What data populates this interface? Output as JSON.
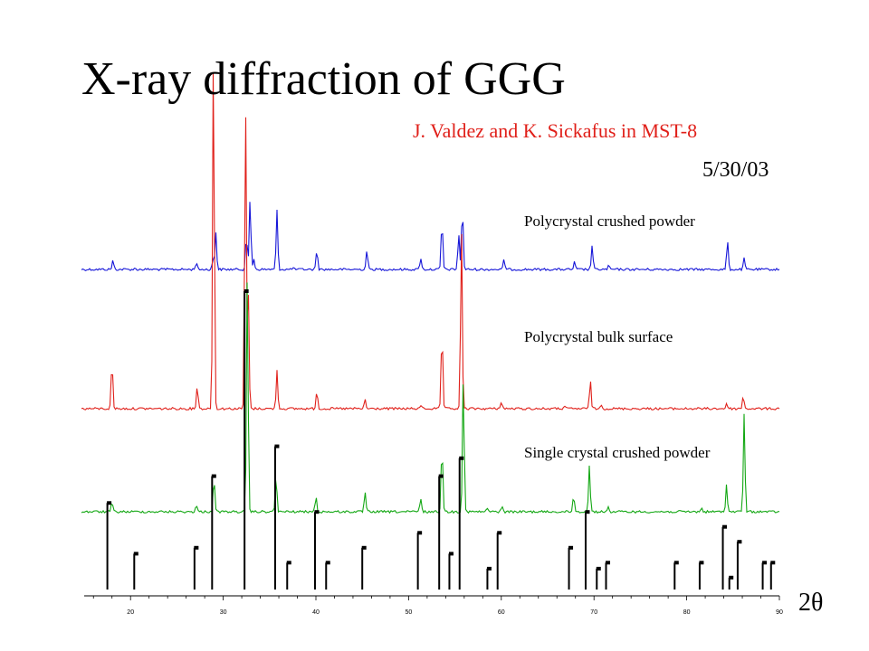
{
  "slide": {
    "title": "X-ray diffraction of GGG",
    "credit": "J. Valdez and K. Sickafus in MST-8",
    "date": "5/30/03",
    "x_unit": "2θ"
  },
  "chart_data": {
    "type": "line",
    "x_axis": {
      "xlim": [
        15,
        90
      ],
      "ticks": [
        20,
        30,
        40,
        50,
        60,
        70,
        80,
        90
      ],
      "minor_step": 2
    },
    "series": [
      {
        "name": "Polycrystal crushed powder",
        "color": "#1515d8",
        "peaks": [
          [
            18.1,
            10
          ],
          [
            20.5,
            1
          ],
          [
            27.1,
            8
          ],
          [
            28.9,
            11
          ],
          [
            29.2,
            42
          ],
          [
            32.5,
            38
          ],
          [
            32.9,
            78
          ],
          [
            33.3,
            12
          ],
          [
            35.8,
            65
          ],
          [
            37.5,
            2
          ],
          [
            40.1,
            22
          ],
          [
            45.5,
            22
          ],
          [
            51.3,
            13
          ],
          [
            53.6,
            54
          ],
          [
            55.4,
            40
          ],
          [
            55.8,
            70
          ],
          [
            60.3,
            11
          ],
          [
            67.9,
            8
          ],
          [
            69.8,
            27
          ],
          [
            71.6,
            4
          ],
          [
            84.4,
            32
          ],
          [
            86.2,
            12
          ]
        ]
      },
      {
        "name": "Polycrystal bulk surface",
        "color": "#e0201a",
        "peaks": [
          [
            18.0,
            52
          ],
          [
            27.2,
            26
          ],
          [
            28.95,
            400
          ],
          [
            32.4,
            340
          ],
          [
            32.7,
            130
          ],
          [
            35.8,
            42
          ],
          [
            40.1,
            20
          ],
          [
            45.3,
            10
          ],
          [
            51.4,
            4
          ],
          [
            53.6,
            85
          ],
          [
            55.7,
            200
          ],
          [
            60.0,
            8
          ],
          [
            66.8,
            3
          ],
          [
            69.6,
            32
          ],
          [
            70.8,
            5
          ],
          [
            84.3,
            6
          ],
          [
            86.1,
            14
          ]
        ]
      },
      {
        "name": "Single crystal crushed powder",
        "color": "#13a713",
        "peaks": [
          [
            18.0,
            10
          ],
          [
            27.1,
            7
          ],
          [
            29.0,
            38
          ],
          [
            32.6,
            260
          ],
          [
            35.7,
            40
          ],
          [
            40.0,
            17
          ],
          [
            45.3,
            22
          ],
          [
            51.3,
            15
          ],
          [
            53.6,
            75
          ],
          [
            55.9,
            150
          ],
          [
            58.5,
            4
          ],
          [
            60.1,
            6
          ],
          [
            67.8,
            18
          ],
          [
            69.5,
            52
          ],
          [
            71.5,
            5
          ],
          [
            81.6,
            4
          ],
          [
            84.3,
            30
          ],
          [
            86.2,
            108
          ]
        ]
      }
    ],
    "reference_lines": [
      [
        17.5,
        0.29
      ],
      [
        20.4,
        0.12
      ],
      [
        26.9,
        0.14
      ],
      [
        28.8,
        0.38
      ],
      [
        32.3,
        1.0
      ],
      [
        35.6,
        0.48
      ],
      [
        36.9,
        0.09
      ],
      [
        39.9,
        0.26
      ],
      [
        41.1,
        0.09
      ],
      [
        45.0,
        0.14
      ],
      [
        51.0,
        0.19
      ],
      [
        53.3,
        0.38
      ],
      [
        54.4,
        0.12
      ],
      [
        55.5,
        0.44
      ],
      [
        58.5,
        0.07
      ],
      [
        59.6,
        0.19
      ],
      [
        67.3,
        0.14
      ],
      [
        69.1,
        0.26
      ],
      [
        70.3,
        0.07
      ],
      [
        71.3,
        0.09
      ],
      [
        78.7,
        0.09
      ],
      [
        81.4,
        0.09
      ],
      [
        83.9,
        0.21
      ],
      [
        84.6,
        0.04
      ],
      [
        85.5,
        0.16
      ],
      [
        88.2,
        0.09
      ],
      [
        89.1,
        0.09
      ]
    ]
  }
}
